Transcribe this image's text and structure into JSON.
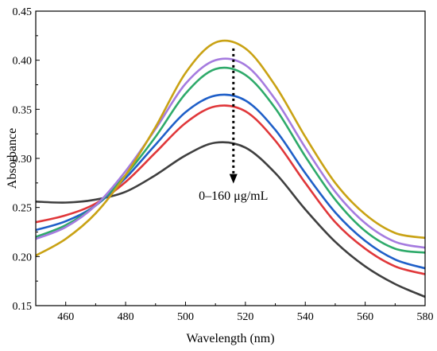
{
  "chart_data": {
    "type": "line",
    "xlabel": "Wavelength (nm)",
    "ylabel": "Absorbance",
    "xlim": [
      450,
      580
    ],
    "ylim": [
      0.15,
      0.45
    ],
    "xticks": [
      460,
      480,
      500,
      520,
      540,
      560,
      580
    ],
    "xtick_labels": [
      "460",
      "480",
      "500",
      "520",
      "540",
      "560",
      "580"
    ],
    "yticks": [
      0.15,
      0.2,
      0.25,
      0.3,
      0.35,
      0.4,
      0.45
    ],
    "ytick_labels": [
      "0.15",
      "0.20",
      "0.25",
      "0.30",
      "0.35",
      "0.40",
      "0.45"
    ],
    "grid": false,
    "legend": "none",
    "annotation": {
      "text": "0–160 μg/mL",
      "arrow_x": 516,
      "arrow_from": 0.412,
      "arrow_to": 0.276,
      "text_x": 516,
      "text_y": 0.258
    },
    "x": [
      450,
      460,
      470,
      480,
      490,
      500,
      510,
      520,
      530,
      540,
      550,
      560,
      570,
      580
    ],
    "series": [
      {
        "color": "#3f3f3f",
        "values": [
          0.256,
          0.255,
          0.258,
          0.266,
          0.283,
          0.303,
          0.316,
          0.311,
          0.285,
          0.248,
          0.215,
          0.19,
          0.172,
          0.159
        ]
      },
      {
        "color": "#e0373a",
        "values": [
          0.235,
          0.242,
          0.254,
          0.276,
          0.306,
          0.336,
          0.353,
          0.348,
          0.318,
          0.275,
          0.235,
          0.208,
          0.19,
          0.182
        ]
      },
      {
        "color": "#1f5fc8",
        "values": [
          0.227,
          0.236,
          0.252,
          0.28,
          0.314,
          0.347,
          0.364,
          0.359,
          0.329,
          0.285,
          0.245,
          0.216,
          0.197,
          0.188
        ]
      },
      {
        "color": "#2eaa6a",
        "values": [
          0.22,
          0.232,
          0.252,
          0.283,
          0.322,
          0.366,
          0.391,
          0.385,
          0.351,
          0.302,
          0.258,
          0.226,
          0.208,
          0.204
        ]
      },
      {
        "color": "#a57bdf",
        "values": [
          0.218,
          0.23,
          0.252,
          0.287,
          0.33,
          0.376,
          0.4,
          0.395,
          0.36,
          0.311,
          0.266,
          0.234,
          0.215,
          0.209
        ]
      },
      {
        "color": "#c9a214",
        "values": [
          0.201,
          0.218,
          0.244,
          0.283,
          0.332,
          0.387,
          0.418,
          0.412,
          0.374,
          0.322,
          0.275,
          0.243,
          0.224,
          0.219
        ]
      }
    ]
  }
}
